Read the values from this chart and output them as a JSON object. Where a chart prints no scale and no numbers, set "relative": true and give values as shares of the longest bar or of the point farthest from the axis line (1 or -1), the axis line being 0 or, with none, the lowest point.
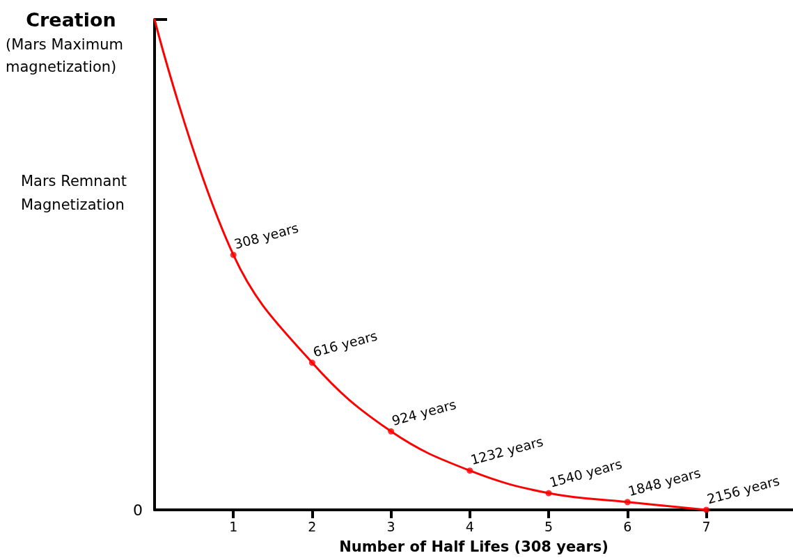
{
  "chart_data": {
    "type": "line",
    "relative": true,
    "xlabel": "Number of Half Lifes (308 years)",
    "ylabel": "Mars Remnant Magnetization",
    "annotations": [
      {
        "text": "Creation",
        "x": 0,
        "y": 1
      },
      "(Mars Maximum magnetization)",
      "0",
      {
        "text": "308 years",
        "x": 1,
        "y": 0.52
      },
      {
        "text": "616 years",
        "x": 2,
        "y": 0.3
      },
      {
        "text": "924 years",
        "x": 3,
        "y": 0.16
      },
      {
        "text": "1232 years",
        "x": 4,
        "y": 0.08
      },
      {
        "text": "1540 years",
        "x": 5,
        "y": 0.034
      },
      {
        "text": "1848 years",
        "x": 6,
        "y": 0.016
      },
      {
        "text": "2156 years",
        "x": 7,
        "y": 0
      }
    ],
    "xlim": [
      0,
      8.1
    ],
    "xticks": [
      1,
      2,
      3,
      4,
      5,
      6,
      7
    ],
    "grid": false,
    "series": [
      {
        "color": "#ff0000",
        "marker": "none",
        "x": [
          0,
          1,
          2,
          3,
          4,
          5,
          6,
          7
        ],
        "values": [
          1,
          0.52,
          0.3,
          0.16,
          0.08,
          0.034,
          0.016,
          0
        ]
      },
      {
        "type": "scatter",
        "color": "#ff0000",
        "marker": "circle",
        "x": [
          1,
          2,
          3,
          4,
          5,
          6,
          7
        ],
        "values": [
          0.52,
          0.3,
          0.16,
          0.08,
          0.034,
          0.016,
          0
        ]
      }
    ]
  }
}
